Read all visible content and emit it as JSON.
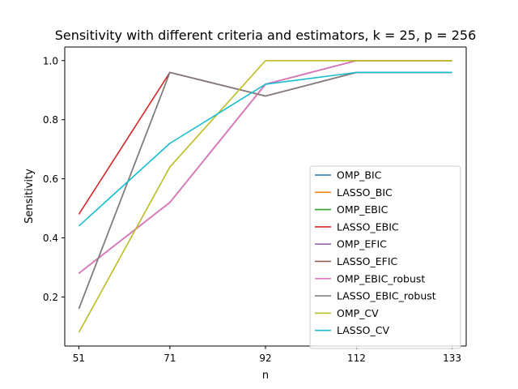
{
  "chart_data": {
    "type": "line",
    "title": "Sensitivity with different criteria and estimators, k = 25, p = 256",
    "xlabel": "n",
    "ylabel": "Sensitivity",
    "x": [
      51,
      71,
      92,
      112,
      133
    ],
    "x_ticks": [
      "51",
      "71",
      "92",
      "112",
      "133"
    ],
    "xlim": [
      47.9,
      136.1
    ],
    "y_ticks": [
      "0.2",
      "0.4",
      "0.6",
      "0.8",
      "1.0"
    ],
    "ylim": [
      0.034,
      1.046
    ],
    "grid": false,
    "legend_position": "lower-right",
    "series": [
      {
        "name": "OMP_BIC",
        "color": "#1f77b4",
        "values": [
          0.28,
          0.52,
          0.92,
          1.0,
          1.0
        ]
      },
      {
        "name": "LASSO_BIC",
        "color": "#ff7f0e",
        "values": [
          0.28,
          0.52,
          0.92,
          1.0,
          1.0
        ]
      },
      {
        "name": "OMP_EBIC",
        "color": "#2ca02c",
        "values": [
          0.28,
          0.52,
          0.92,
          1.0,
          1.0
        ]
      },
      {
        "name": "LASSO_EBIC",
        "color": "#d62728",
        "values": [
          0.48,
          0.96,
          0.88,
          0.96,
          0.96
        ]
      },
      {
        "name": "OMP_EFIC",
        "color": "#9467bd",
        "values": [
          0.28,
          0.52,
          0.92,
          1.0,
          1.0
        ]
      },
      {
        "name": "LASSO_EFIC",
        "color": "#8c564b",
        "values": [
          0.16,
          0.96,
          0.88,
          0.96,
          0.96
        ]
      },
      {
        "name": "OMP_EBIC_robust",
        "color": "#e377c2",
        "values": [
          0.28,
          0.52,
          0.92,
          1.0,
          1.0
        ]
      },
      {
        "name": "LASSO_EBIC_robust",
        "color": "#7f7f7f",
        "values": [
          0.16,
          0.96,
          0.88,
          0.96,
          0.96
        ]
      },
      {
        "name": "OMP_CV",
        "color": "#bcbd22",
        "values": [
          0.08,
          0.64,
          1.0,
          1.0,
          1.0
        ]
      },
      {
        "name": "LASSO_CV",
        "color": "#17becf",
        "values": [
          0.44,
          0.72,
          0.92,
          0.96,
          0.96
        ]
      }
    ]
  }
}
